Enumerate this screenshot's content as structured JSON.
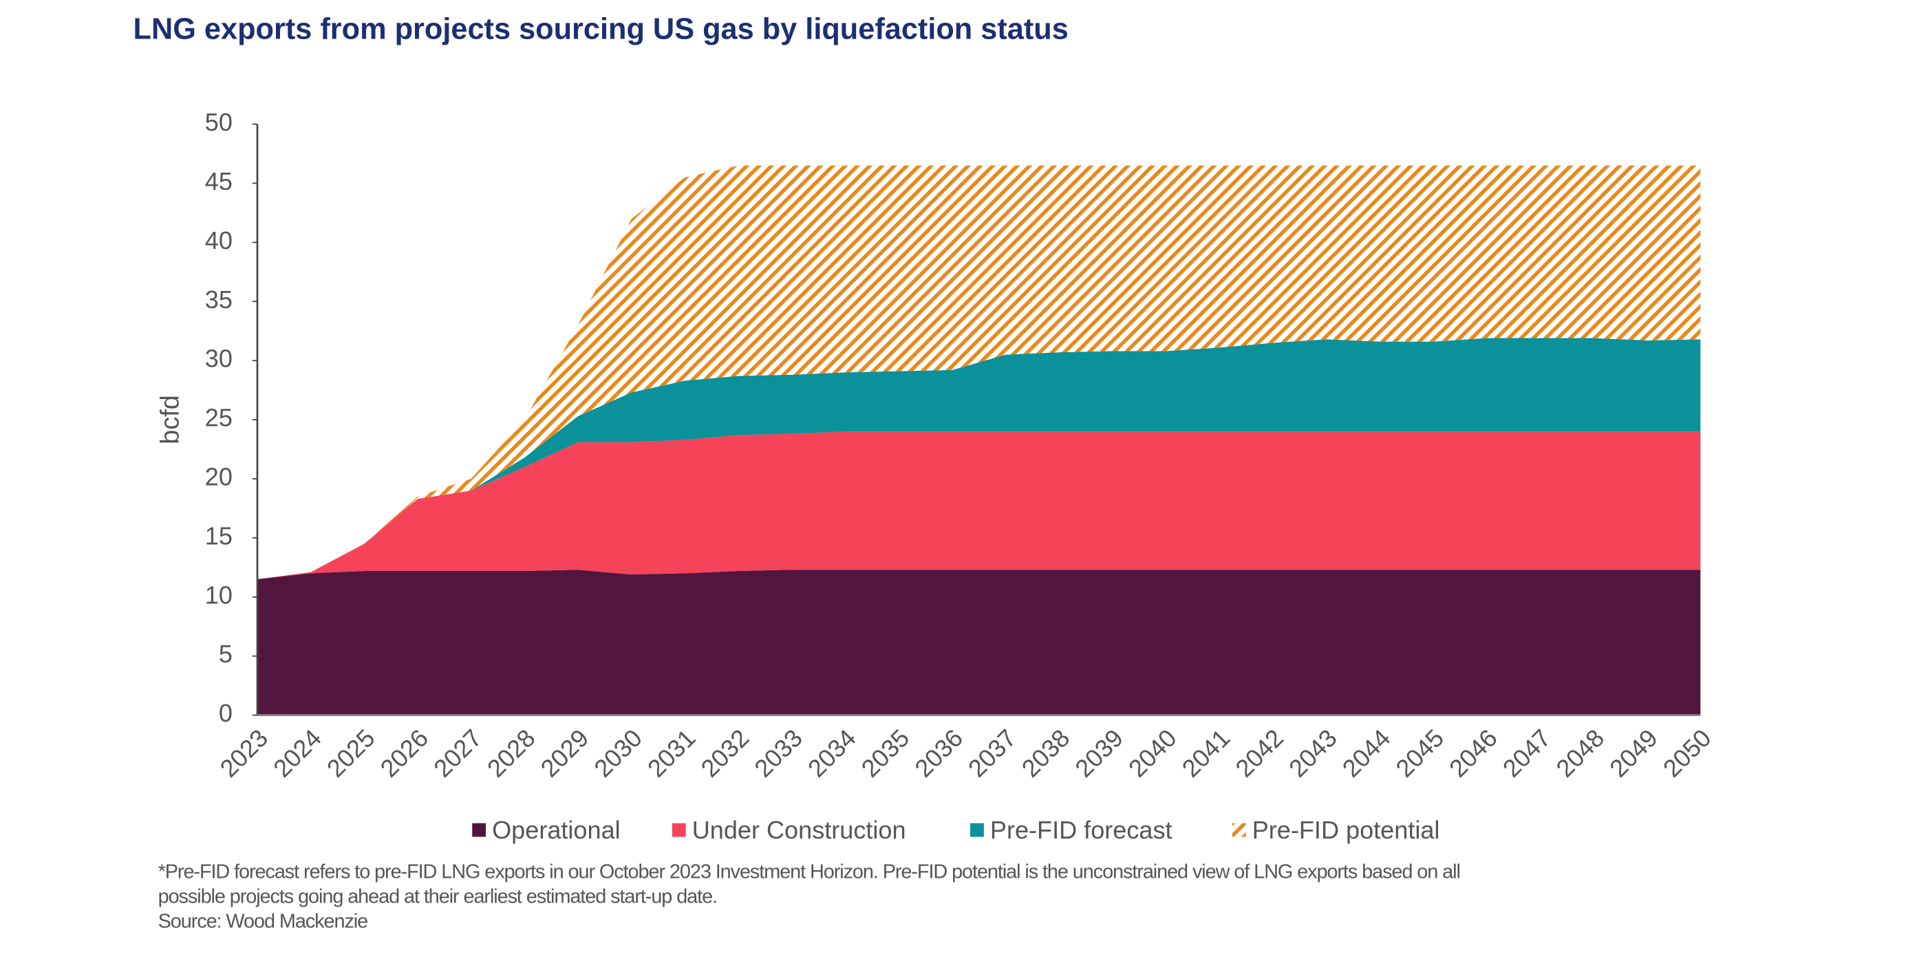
{
  "chart_data": {
    "type": "stacked_area",
    "title": "LNG exports from projects sourcing US gas by liquefaction status",
    "y_label": "bcfd",
    "categories": [
      "2023",
      "2024",
      "2025",
      "2026",
      "2027",
      "2028",
      "2029",
      "2030",
      "2031",
      "2032",
      "2033",
      "2034",
      "2035",
      "2036",
      "2037",
      "2038",
      "2039",
      "2040",
      "2041",
      "2042",
      "2043",
      "2044",
      "2045",
      "2046",
      "2047",
      "2048",
      "2049",
      "2050"
    ],
    "series": [
      {
        "name": "Operational",
        "color": "#52163e",
        "pattern": "solid",
        "values": [
          11.5,
          12.0,
          12.2,
          12.2,
          12.2,
          12.2,
          12.3,
          11.9,
          12.0,
          12.2,
          12.3,
          12.3,
          12.3,
          12.3,
          12.3,
          12.3,
          12.3,
          12.3,
          12.3,
          12.3,
          12.3,
          12.3,
          12.3,
          12.3,
          12.3,
          12.3,
          12.3,
          12.3
        ]
      },
      {
        "name": "Under Construction",
        "color": "#f5435a",
        "pattern": "solid",
        "values": [
          0,
          0.1,
          2.3,
          6.1,
          6.8,
          8.8,
          10.8,
          11.2,
          11.3,
          11.5,
          11.5,
          11.7,
          11.7,
          11.7,
          11.7,
          11.7,
          11.7,
          11.7,
          11.7,
          11.7,
          11.7,
          11.7,
          11.7,
          11.7,
          11.7,
          11.7,
          11.7,
          11.7
        ]
      },
      {
        "name": "Pre-FID forecast",
        "color": "#0a9199",
        "pattern": "solid",
        "values": [
          0,
          0,
          0,
          0,
          0,
          0.8,
          2.2,
          4.2,
          5.0,
          5.0,
          5.0,
          5.0,
          5.1,
          5.2,
          6.5,
          6.7,
          6.8,
          6.8,
          7.1,
          7.5,
          7.8,
          7.6,
          7.6,
          7.9,
          7.9,
          7.9,
          7.7,
          7.8
        ]
      },
      {
        "name": "Pre-FID potential",
        "color": "#e8891c",
        "pattern": "hatch",
        "values": [
          0,
          0,
          0,
          0.2,
          1.0,
          3.2,
          7.7,
          14.7,
          17.2,
          17.8,
          17.7,
          17.5,
          17.4,
          17.3,
          16.0,
          15.8,
          15.7,
          15.7,
          15.4,
          15.0,
          14.7,
          14.9,
          14.9,
          14.6,
          14.6,
          14.6,
          14.8,
          14.7
        ]
      }
    ],
    "ylim": [
      0,
      50
    ],
    "yticks": [
      0,
      5,
      10,
      15,
      20,
      25,
      30,
      35,
      40,
      45,
      50
    ],
    "grid": false,
    "legend": "bottom",
    "notes": [
      "*Pre-FID forecast refers to pre-FID LNG exports in our October 2023 Investment Horizon. Pre-FID potential is the unconstrained view of LNG exports based on all",
      "possible projects going ahead at their earliest estimated start-up date.",
      "Source: Wood Mackenzie"
    ]
  }
}
